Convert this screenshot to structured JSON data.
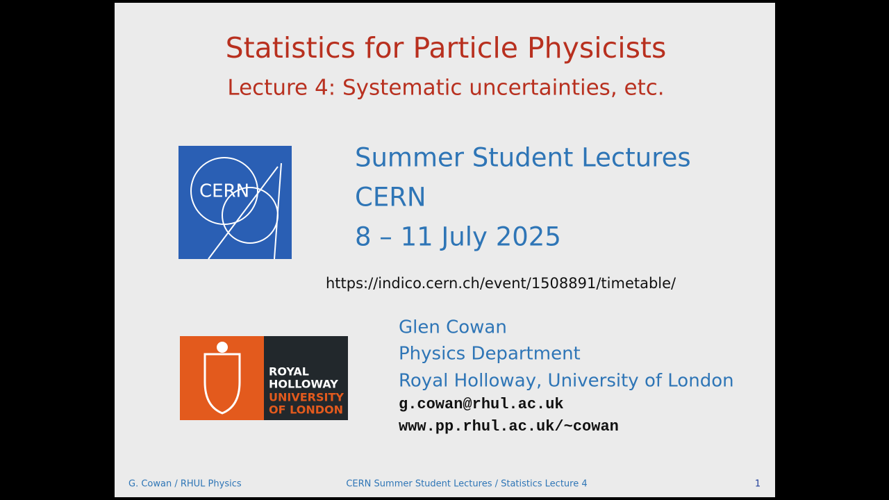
{
  "header": {
    "title": "Statistics for Particle Physicists",
    "subtitle": "Lecture 4:  Systematic uncertainties, etc."
  },
  "event": {
    "lines": [
      "Summer Student Lectures",
      "CERN",
      "8 – 11 July 2025"
    ],
    "url": "https://indico.cern.ch/event/1508891/timetable/"
  },
  "logos": {
    "cern": "CERN",
    "royal_holloway": [
      "ROYAL",
      "HOLLOWAY",
      "UNIVERSITY",
      "OF LONDON"
    ]
  },
  "author": {
    "lines": [
      "Glen Cowan",
      "Physics Department",
      "Royal Holloway, University of London"
    ],
    "email": "g.cowan@rhul.ac.uk",
    "web": "www.pp.rhul.ac.uk/~cowan"
  },
  "footer": {
    "left": "G. Cowan / RHUL Physics",
    "center": "CERN Summer Student Lectures / Statistics Lecture 4",
    "page": "1"
  }
}
